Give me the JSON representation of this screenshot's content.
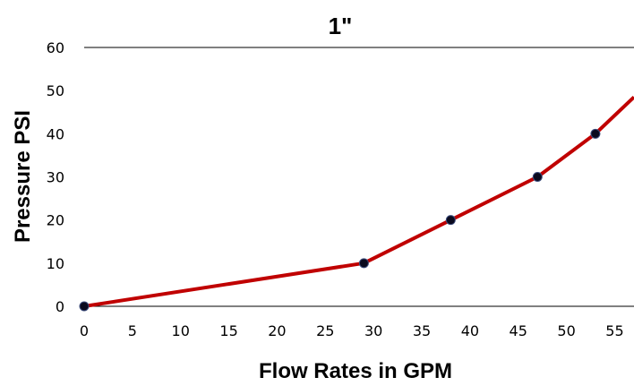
{
  "chart_data": {
    "type": "line",
    "title": "1\"",
    "xlabel": "Flow Rates in GPM",
    "ylabel": "Pressure PSI",
    "xlim": [
      0,
      57
    ],
    "ylim": [
      0,
      60
    ],
    "x_ticks": [
      0,
      5,
      10,
      15,
      20,
      25,
      30,
      35,
      40,
      45,
      50,
      55
    ],
    "y_ticks": [
      0,
      10,
      20,
      30,
      40,
      50,
      60
    ],
    "series": [
      {
        "x": [
          0,
          29,
          38,
          47,
          53,
          57
        ],
        "y": [
          0,
          10,
          20,
          30,
          40,
          48.5
        ],
        "markers": [
          true,
          true,
          true,
          true,
          true,
          false
        ]
      }
    ],
    "line_color": "#c00000",
    "marker_color": "#0a0a1e",
    "axis_color": "#000000",
    "grid": false
  }
}
